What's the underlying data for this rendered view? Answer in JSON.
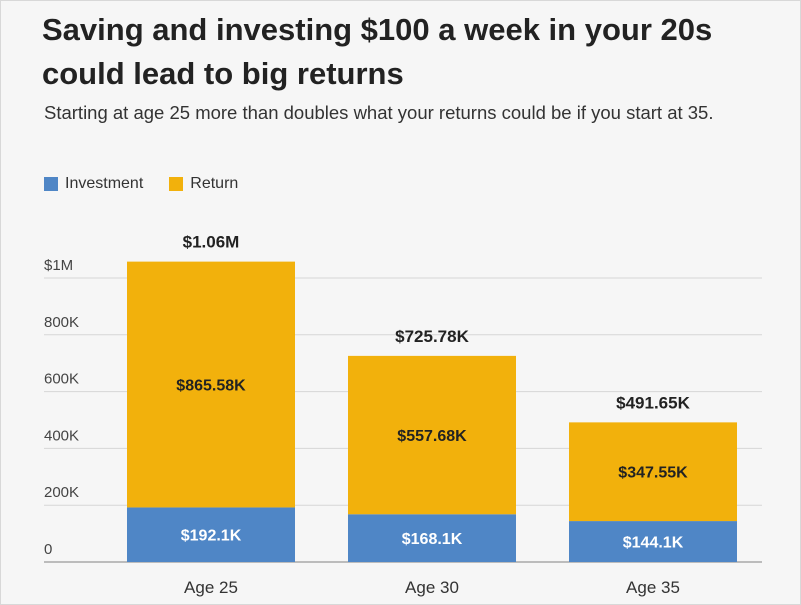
{
  "chart_data": {
    "type": "bar",
    "stacked": true,
    "title": "Saving and investing $100 a week in your 20s could lead to big returns",
    "subtitle": "Starting at age 25 more than doubles what your returns could be if you start at 35.",
    "categories": [
      "Age 25",
      "Age 30",
      "Age 35"
    ],
    "series": [
      {
        "name": "Investment",
        "color": "#4f86c6",
        "values": [
          192100,
          168100,
          144100
        ],
        "labels": [
          "$192.1K",
          "$168.1K",
          "$144.1K"
        ]
      },
      {
        "name": "Return",
        "color": "#f2b10c",
        "values": [
          865580,
          557680,
          347550
        ],
        "labels": [
          "$865.58K",
          "$557.68K",
          "$347.55K"
        ]
      }
    ],
    "totals": [
      1060000,
      725780,
      491650
    ],
    "total_labels": [
      "$1.06M",
      "$725.78K",
      "$491.65K"
    ],
    "y_ticks": [
      0,
      200000,
      400000,
      600000,
      800000,
      1000000
    ],
    "y_tick_labels": [
      "0",
      "200K",
      "400K",
      "600K",
      "800K",
      "$1M"
    ],
    "ylim": [
      0,
      1000000
    ],
    "grid": true,
    "legend": "top-left"
  }
}
